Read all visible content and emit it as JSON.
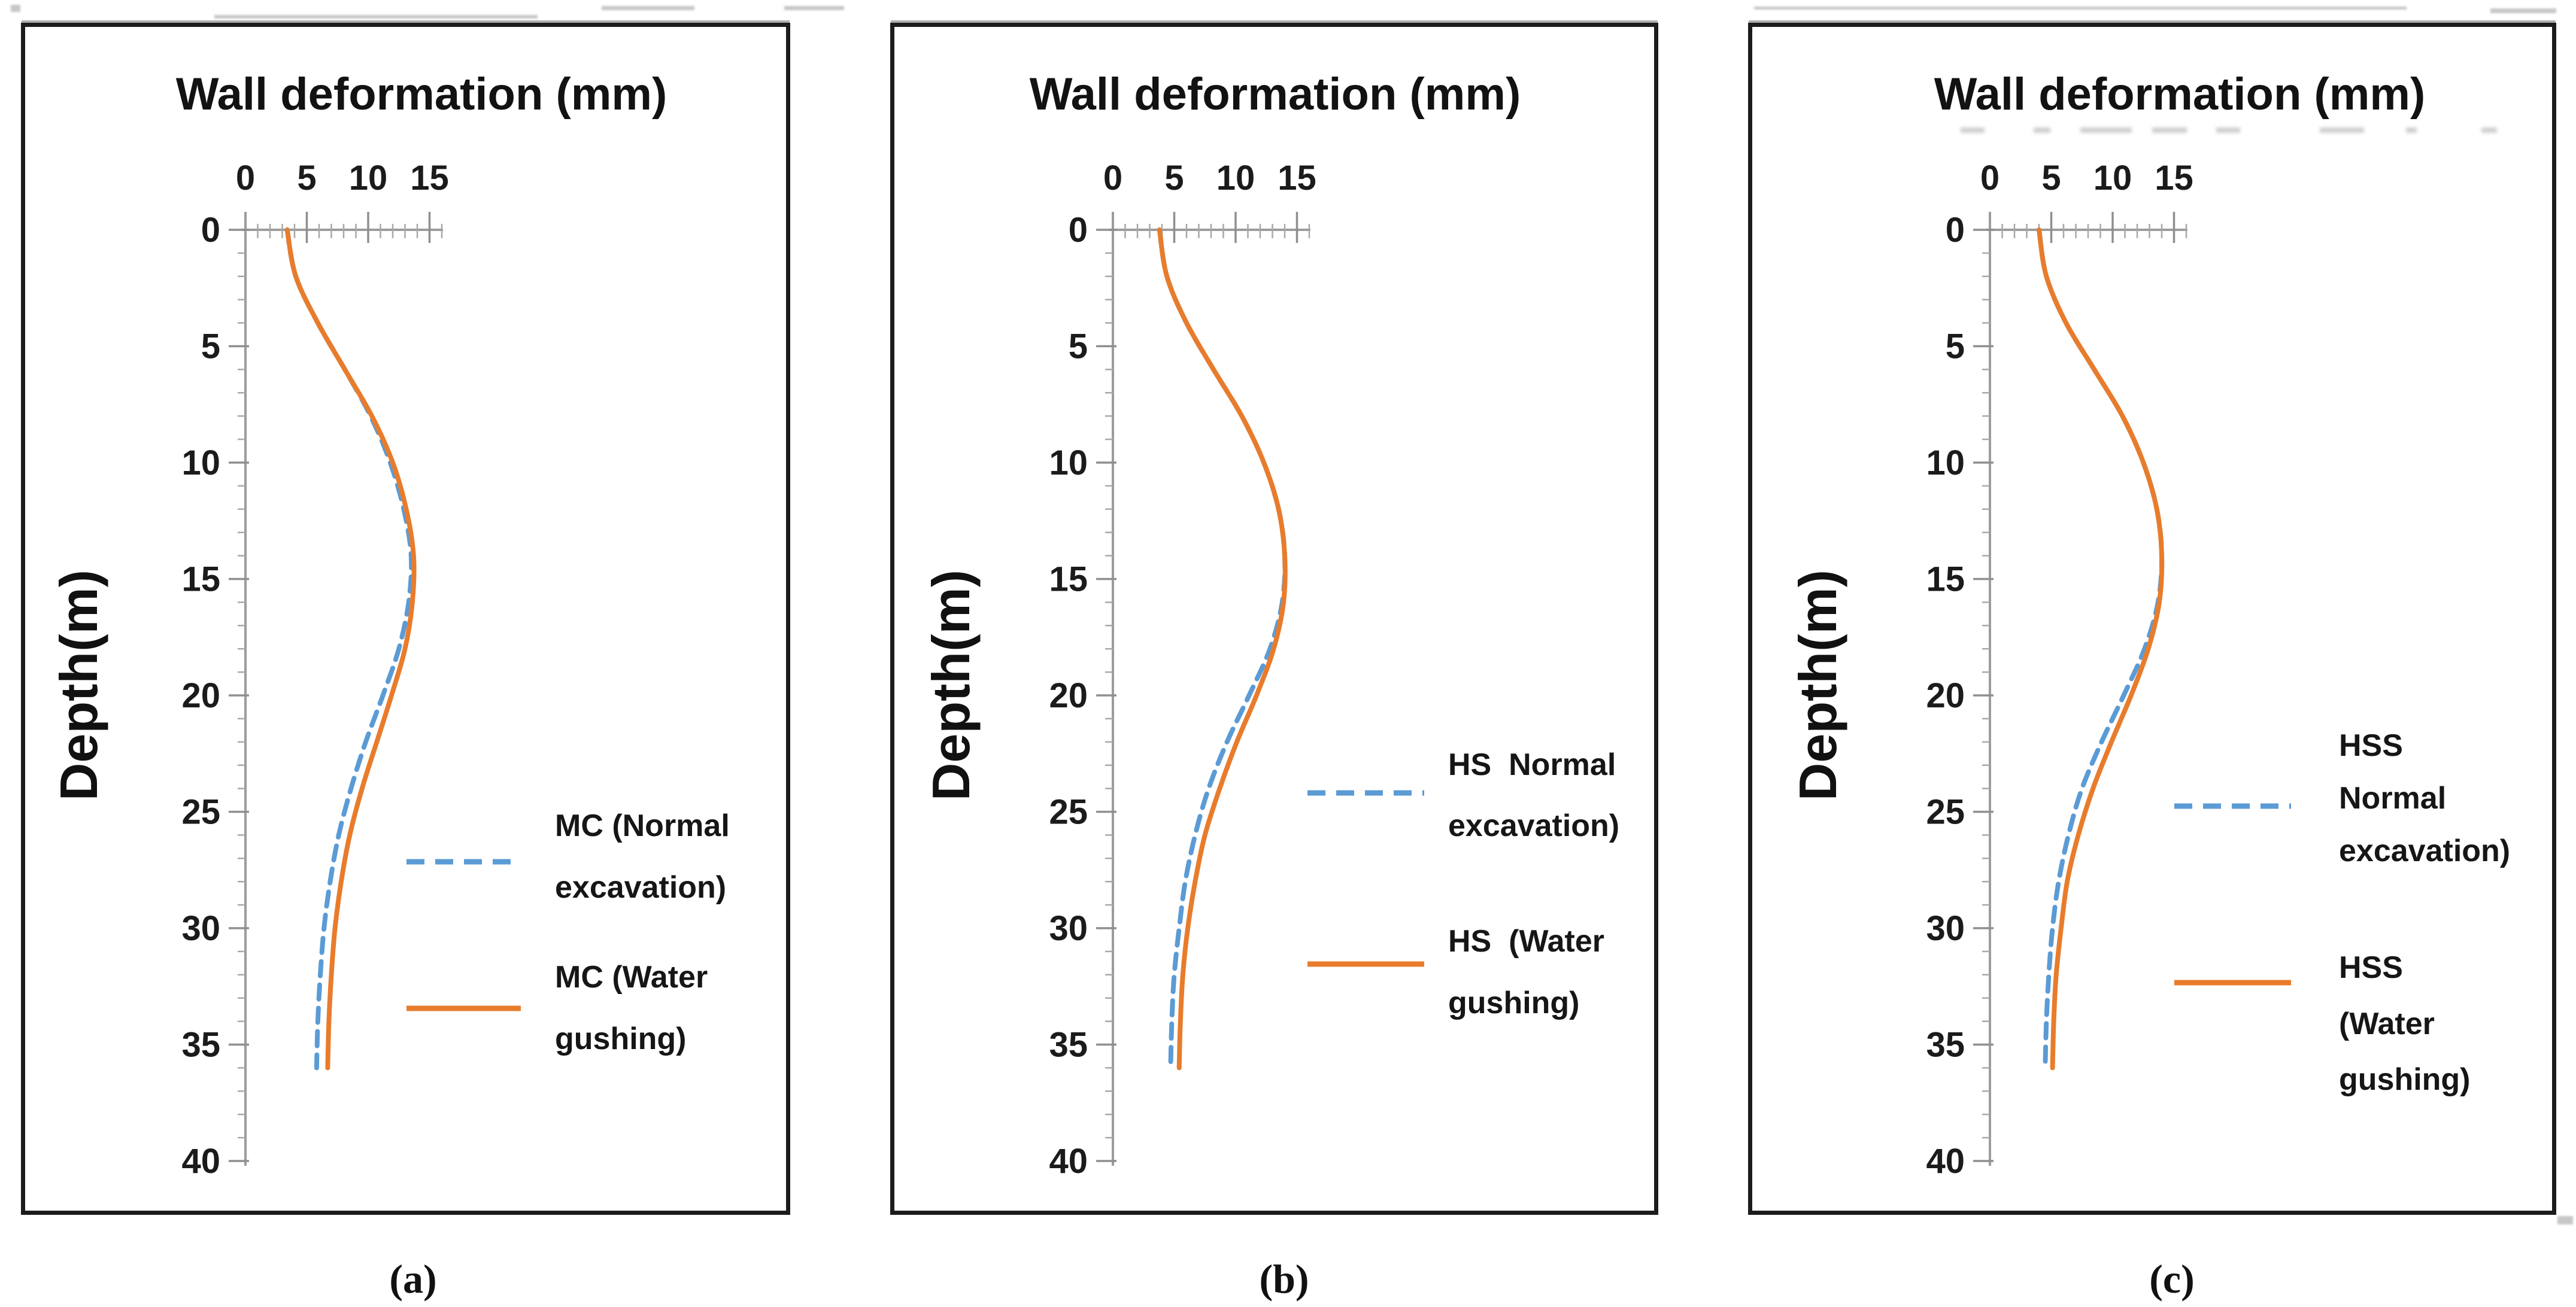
{
  "figure": {
    "title": "Wall deformation (mm)",
    "y_axis_label": "Depth(m)",
    "panel_labels": [
      "(a)",
      "(b)",
      "(c)"
    ],
    "colors": {
      "normal_excavation_line": "#5B9BD5",
      "water_gushing_line": "#E87C2C",
      "axis_gray": "#9C9C9C",
      "tick_gray": "#8F8F8F",
      "text_black": "#1B1B1B",
      "panel_border": "#1C1C1C"
    }
  },
  "chart_data": [
    {
      "type": "line",
      "sublabel": "(a)",
      "title": "Wall deformation (mm)",
      "xlabel": "Wall deformation (mm)",
      "ylabel": "Depth(m)",
      "x_ticks": [
        "0",
        "5",
        "10",
        "15"
      ],
      "y_ticks": [
        "0",
        "5",
        "10",
        "15",
        "20",
        "25",
        "30",
        "35",
        "40"
      ],
      "x_range": [
        0,
        16
      ],
      "y_range": [
        0,
        40
      ],
      "grid": false,
      "legend_position": "inside-right-middle",
      "depth_m": [
        0,
        2,
        4,
        6,
        8,
        10,
        12,
        14,
        16,
        18,
        20,
        22,
        24,
        26,
        28,
        30,
        32,
        34,
        36
      ],
      "series": [
        {
          "name": "MC (Normal excavation)",
          "legend_lines": [
            "MC (Normal",
            "excavation)"
          ],
          "style": "dashed",
          "color": "#5B9BD5",
          "values": [
            3.4,
            4.1,
            5.9,
            8.1,
            10.2,
            11.8,
            12.9,
            13.5,
            13.3,
            12.5,
            11.2,
            9.8,
            8.6,
            7.6,
            6.9,
            6.4,
            6.1,
            5.9,
            5.8
          ]
        },
        {
          "name": "MC (Water gushing)",
          "legend_lines": [
            "MC (Water",
            "gushing)"
          ],
          "style": "solid",
          "color": "#E87C2C",
          "values": [
            3.4,
            4.1,
            5.9,
            8.1,
            10.3,
            12.0,
            13.1,
            13.7,
            13.6,
            13.0,
            11.9,
            10.7,
            9.5,
            8.5,
            7.8,
            7.3,
            7.0,
            6.8,
            6.7
          ]
        }
      ]
    },
    {
      "type": "line",
      "sublabel": "(b)",
      "title": "Wall deformation (mm)",
      "xlabel": "Wall deformation (mm)",
      "ylabel": "Depth(m)",
      "x_ticks": [
        "0",
        "5",
        "10",
        "15"
      ],
      "y_ticks": [
        "0",
        "5",
        "10",
        "15",
        "20",
        "25",
        "30",
        "35",
        "40"
      ],
      "x_range": [
        0,
        16
      ],
      "y_range": [
        0,
        40
      ],
      "grid": false,
      "legend_position": "inside-right-middle",
      "depth_m": [
        0,
        2,
        4,
        6,
        8,
        10,
        12,
        14,
        16,
        18,
        20,
        22,
        24,
        26,
        28,
        30,
        32,
        34,
        36
      ],
      "series": [
        {
          "name": "HS Normal excavation)",
          "legend_lines": [
            "HS  Normal",
            "excavation)"
          ],
          "style": "dashed",
          "color": "#5B9BD5",
          "values": [
            3.8,
            4.4,
            6.0,
            8.2,
            10.5,
            12.3,
            13.5,
            14.0,
            13.8,
            12.8,
            11.1,
            9.3,
            7.8,
            6.7,
            5.9,
            5.4,
            5.0,
            4.8,
            4.7
          ]
        },
        {
          "name": "HS (Water gushing)",
          "legend_lines": [
            "HS  (Water",
            "gushing)"
          ],
          "style": "solid",
          "color": "#E87C2C",
          "values": [
            3.8,
            4.4,
            6.0,
            8.2,
            10.5,
            12.3,
            13.5,
            14.0,
            13.9,
            13.1,
            11.7,
            10.1,
            8.7,
            7.5,
            6.7,
            6.1,
            5.7,
            5.5,
            5.4
          ]
        }
      ]
    },
    {
      "type": "line",
      "sublabel": "(c)",
      "title": "Wall deformation (mm)",
      "xlabel": "Wall deformation (mm)",
      "ylabel": "Depth(m)",
      "x_ticks": [
        "0",
        "5",
        "10",
        "15"
      ],
      "y_ticks": [
        "0",
        "5",
        "10",
        "15",
        "20",
        "25",
        "30",
        "35",
        "40"
      ],
      "x_range": [
        0,
        16
      ],
      "y_range": [
        0,
        40
      ],
      "grid": false,
      "legend_position": "inside-right-middle",
      "depth_m": [
        0,
        2,
        4,
        6,
        8,
        10,
        12,
        14,
        16,
        18,
        20,
        22,
        24,
        26,
        28,
        30,
        32,
        34,
        36
      ],
      "series": [
        {
          "name": "HSS Normal excavation)",
          "legend_lines": [
            "HSS",
            "Normal",
            "excavation)"
          ],
          "style": "dashed",
          "color": "#5B9BD5",
          "values": [
            4.0,
            4.6,
            6.2,
            8.5,
            10.8,
            12.5,
            13.6,
            14.0,
            13.7,
            12.6,
            10.9,
            9.1,
            7.5,
            6.4,
            5.6,
            5.1,
            4.8,
            4.6,
            4.5
          ]
        },
        {
          "name": "HSS (Water gushing)",
          "legend_lines": [
            "HSS",
            "(Water",
            "gushing)"
          ],
          "style": "solid",
          "color": "#E87C2C",
          "values": [
            4.0,
            4.6,
            6.2,
            8.5,
            10.8,
            12.5,
            13.6,
            14.0,
            13.8,
            12.9,
            11.5,
            9.9,
            8.4,
            7.2,
            6.3,
            5.8,
            5.4,
            5.2,
            5.1
          ]
        }
      ]
    }
  ]
}
